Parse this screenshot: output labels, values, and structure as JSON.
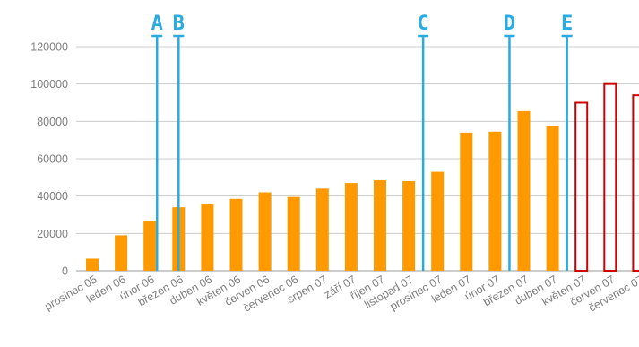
{
  "chart_data": {
    "type": "bar",
    "title": "",
    "xlabel": "",
    "ylabel": "",
    "ylim": [
      0,
      120000
    ],
    "yticks": [
      0,
      20000,
      40000,
      60000,
      80000,
      100000,
      120000
    ],
    "ytick_labels": [
      "0",
      "20000",
      "40000",
      "60000",
      "80000",
      "100000",
      "120000"
    ],
    "grid": "horizontal",
    "legend": "none",
    "categories": [
      "prosinec 05",
      "leden 06",
      "únor 06",
      "březen 06",
      "duben 06",
      "květen 06",
      "červen 06",
      "červenec 06",
      "srpen 07",
      "září 07",
      "říjen 07",
      "listopad 07",
      "prosinec 07",
      "leden 07",
      "únor 07",
      "březen 07",
      "duben 07",
      "květen 07",
      "červen 07",
      "červenec 07"
    ],
    "series": [
      {
        "values": [
          6500,
          19000,
          26500,
          34000,
          35500,
          38500,
          42000,
          39500,
          44000,
          47000,
          48500,
          48000,
          53000,
          74000,
          74500,
          85500,
          77500,
          null,
          null,
          null
        ],
        "color": "#ff9900",
        "style": "filled"
      },
      {
        "values": [
          null,
          null,
          null,
          null,
          null,
          null,
          null,
          null,
          null,
          null,
          null,
          null,
          null,
          null,
          null,
          null,
          null,
          90000,
          100000,
          94000
        ],
        "color": "#cc0000",
        "style": "outline"
      }
    ],
    "markers": [
      {
        "label": "A",
        "between": [
          "únor 06",
          "březen 06"
        ],
        "position": "left"
      },
      {
        "label": "B",
        "between": [
          "únor 06",
          "březen 06"
        ],
        "position": "right"
      },
      {
        "label": "C",
        "between": [
          "listopad 07",
          "prosinec 07"
        ],
        "position": "center"
      },
      {
        "label": "D",
        "between": [
          "únor 07",
          "březen 07"
        ],
        "position": "center"
      },
      {
        "label": "E",
        "between": [
          "duben 07",
          "květen 07"
        ],
        "position": "center"
      }
    ],
    "marker_color": "#29abe2",
    "axis_color": "#999999",
    "grid_color": "#cccccc",
    "text_color": "#7f7f7f"
  }
}
